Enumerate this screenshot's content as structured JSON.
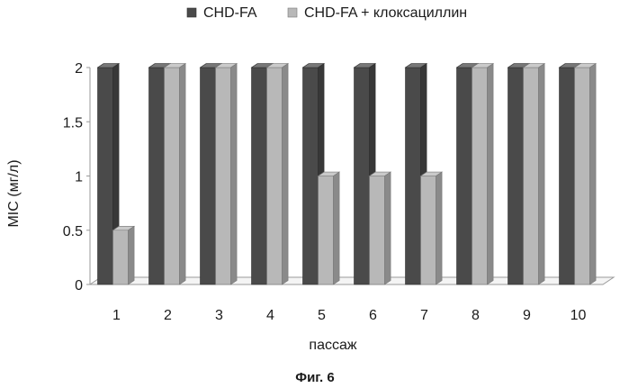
{
  "chart_data": {
    "type": "bar",
    "categories": [
      "1",
      "2",
      "3",
      "4",
      "5",
      "6",
      "7",
      "8",
      "9",
      "10"
    ],
    "series": [
      {
        "name": "CHD-FA",
        "color": "#4a4a4a",
        "values": [
          2,
          2,
          2,
          2,
          2,
          2,
          2,
          2,
          2,
          2
        ]
      },
      {
        "name": "CHD-FA + клоксациллин",
        "color": "#b8b8b8",
        "values": [
          0.5,
          2,
          2,
          2,
          1,
          1,
          1,
          2,
          2,
          2
        ]
      }
    ],
    "title": "",
    "xlabel": "пассаж",
    "ylabel": "MIC (мг/л)",
    "ylim": [
      0,
      2
    ],
    "yticks": [
      "0",
      "0.5",
      "1",
      "1.5",
      "2"
    ],
    "legend_position": "top",
    "grid": false,
    "style": "3d-column"
  },
  "caption": "Фиг. 6"
}
